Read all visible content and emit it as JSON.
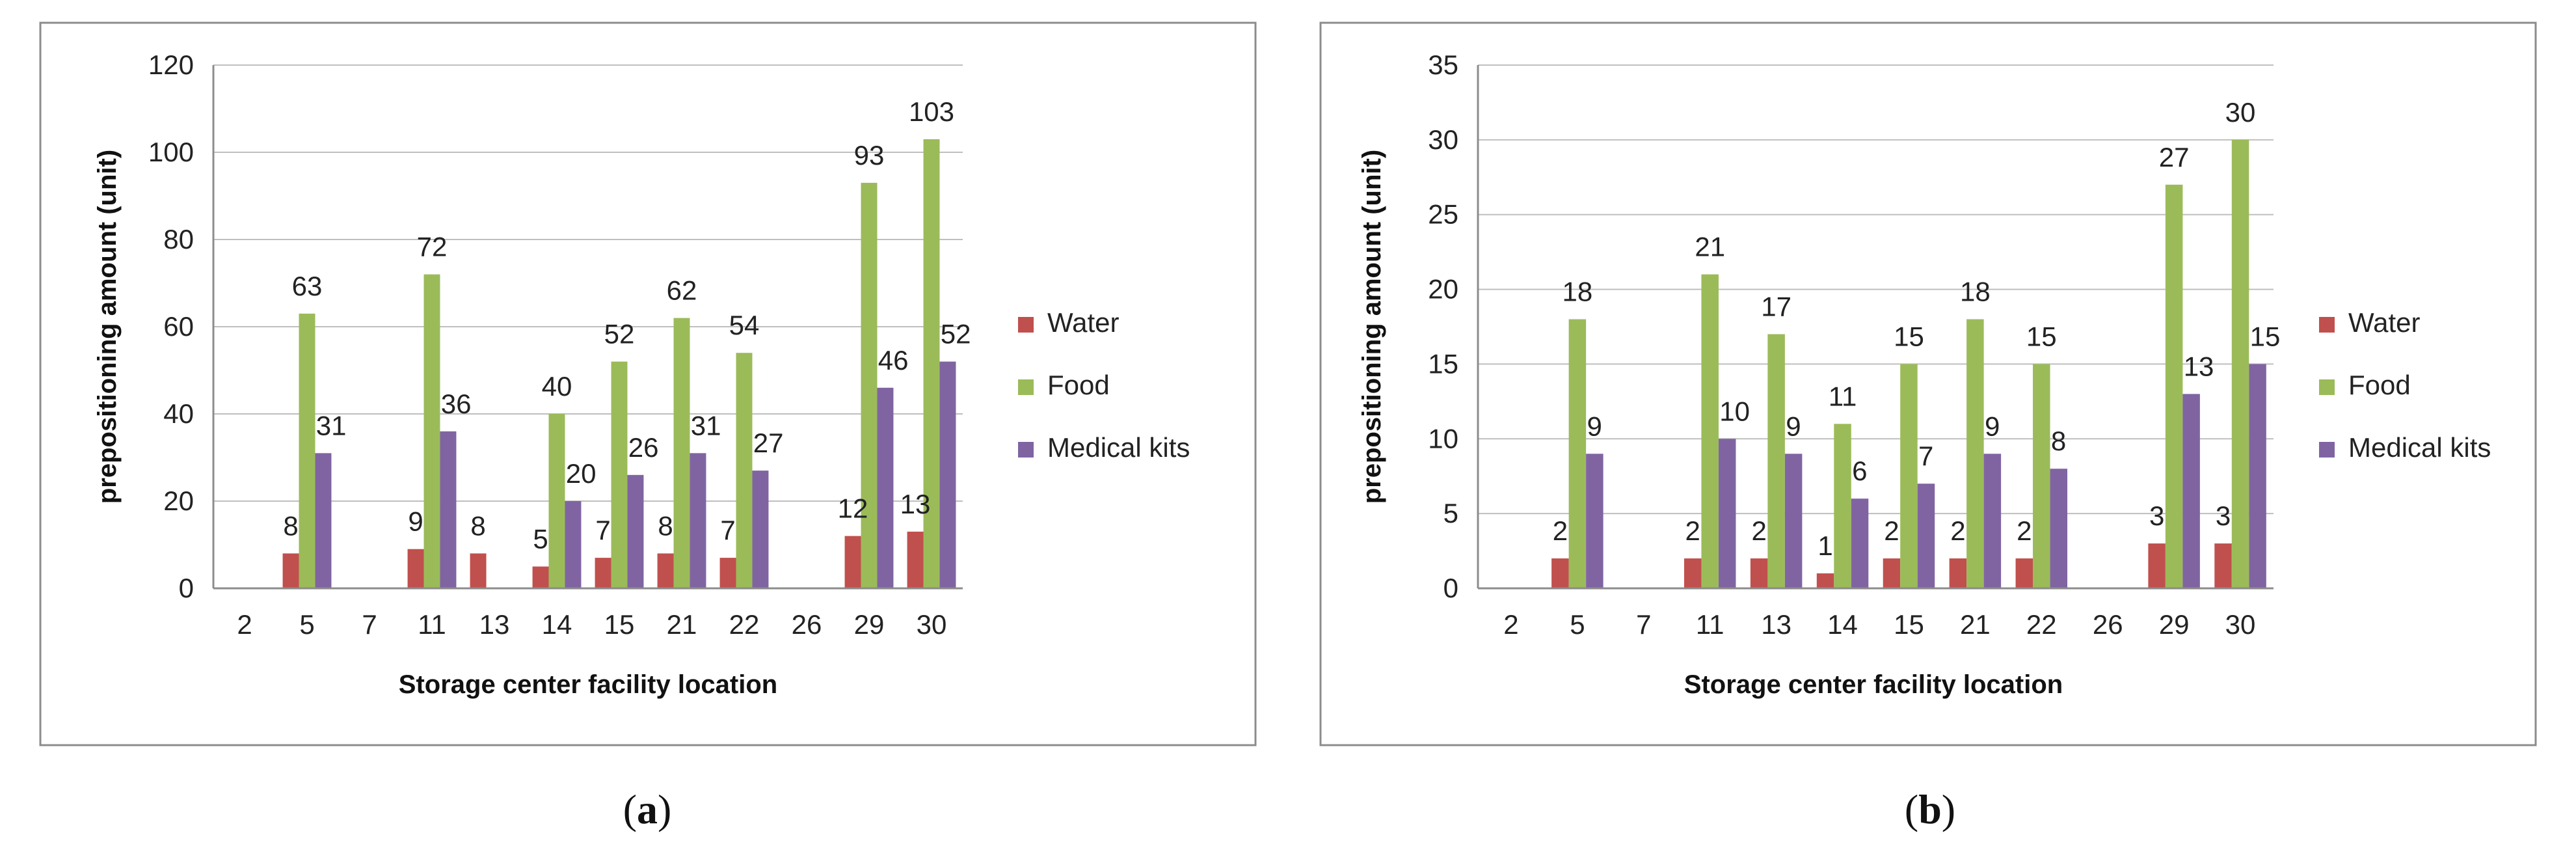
{
  "colors": {
    "water": "#C0504D",
    "food": "#9BBB59",
    "medical": "#8064A2",
    "grid": "#bfbfbf",
    "frame": "#8c8c8c"
  },
  "chart_data": [
    {
      "type": "bar",
      "panel": "a",
      "caption_open": "(",
      "caption_letter": "a",
      "caption_close": ")",
      "xlabel": "Storage center facility location",
      "ylabel": "prepositioning amount (unit)",
      "ylim": [
        0,
        120
      ],
      "yticks": [
        0,
        20,
        40,
        60,
        80,
        100,
        120
      ],
      "categories": [
        "2",
        "5",
        "7",
        "11",
        "13",
        "14",
        "15",
        "21",
        "22",
        "26",
        "29",
        "30"
      ],
      "series": [
        {
          "name": "Water",
          "color": "#C0504D",
          "values": [
            0,
            8,
            0,
            9,
            8,
            5,
            7,
            8,
            7,
            0,
            12,
            13
          ]
        },
        {
          "name": "Food",
          "color": "#9BBB59",
          "values": [
            0,
            63,
            0,
            72,
            0,
            40,
            52,
            62,
            54,
            0,
            93,
            103
          ]
        },
        {
          "name": "Medical kits",
          "color": "#8064A2",
          "values": [
            0,
            31,
            0,
            36,
            0,
            20,
            26,
            31,
            27,
            0,
            46,
            52
          ]
        }
      ]
    },
    {
      "type": "bar",
      "panel": "b",
      "caption_open": "(",
      "caption_letter": "b",
      "caption_close": ")",
      "xlabel": "Storage center facility location",
      "ylabel": "prepositioning amount (unit)",
      "ylim": [
        0,
        35
      ],
      "yticks": [
        0,
        5,
        10,
        15,
        20,
        25,
        30,
        35
      ],
      "categories": [
        "2",
        "5",
        "7",
        "11",
        "13",
        "14",
        "15",
        "21",
        "22",
        "26",
        "29",
        "30"
      ],
      "series": [
        {
          "name": "Water",
          "color": "#C0504D",
          "values": [
            0,
            2,
            0,
            2,
            2,
            1,
            2,
            2,
            2,
            0,
            3,
            3
          ]
        },
        {
          "name": "Food",
          "color": "#9BBB59",
          "values": [
            0,
            18,
            0,
            21,
            17,
            11,
            15,
            18,
            15,
            0,
            27,
            30
          ]
        },
        {
          "name": "Medical kits",
          "color": "#8064A2",
          "values": [
            0,
            9,
            0,
            10,
            9,
            6,
            7,
            9,
            8,
            0,
            13,
            15
          ]
        }
      ]
    }
  ]
}
